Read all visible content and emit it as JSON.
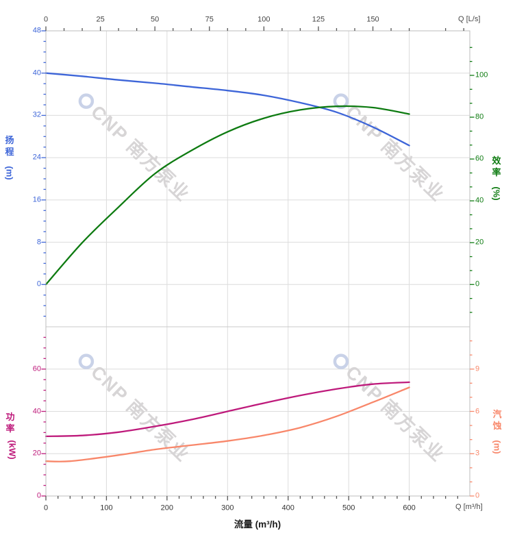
{
  "watermark": {
    "text": "CNP 南方泵业"
  },
  "colors": {
    "head": "#3d65d8",
    "efficiency": "#0e7b11",
    "power": "#be1a7b",
    "npsh": "#f8876a",
    "gridline": "#dcdcdc",
    "plot_border": "#bdbdbd",
    "axis_text": "#444444",
    "watermark_text": "#d7d5d6",
    "watermark_logo": "#c9d2e8"
  },
  "chart_data": [
    {
      "type": "line",
      "id": "head-efficiency-chart",
      "x_axis_top": {
        "unit_label": "Q [L/s]",
        "ticks": [
          0,
          25,
          50,
          75,
          100,
          125,
          150
        ],
        "minor_step": 8.333,
        "range_Ls": [
          0,
          194.4
        ]
      },
      "x_range_m3h": [
        0,
        700
      ],
      "left_axis": {
        "label": "扬程",
        "unit": "(m)",
        "color": "#3d65d8",
        "ticks": [
          0,
          8,
          16,
          24,
          32,
          40,
          48
        ],
        "minor_step": 2,
        "range": [
          -8,
          48
        ]
      },
      "right_axis": {
        "label": "效率",
        "unit": "(%)",
        "color": "#0e7b11",
        "ticks": [
          0,
          20,
          40,
          60,
          80,
          100
        ],
        "minor_step": 6.667,
        "range": [
          -20,
          121
        ]
      },
      "series": [
        {
          "name": "扬程 (Head)",
          "scale": "head",
          "color": "#3d65d8",
          "x_m3h": [
            0,
            60,
            120,
            180,
            240,
            300,
            360,
            420,
            480,
            540,
            600
          ],
          "y": [
            40,
            39.4,
            38.7,
            38.1,
            37.4,
            36.7,
            35.8,
            34.4,
            32.6,
            29.8,
            26.3
          ]
        },
        {
          "name": "效率 (Efficiency)",
          "scale": "eff",
          "color": "#0e7b11",
          "x_m3h": [
            0,
            60,
            120,
            180,
            240,
            300,
            360,
            420,
            480,
            540,
            600
          ],
          "y": [
            0,
            20,
            37,
            53,
            64,
            73,
            79.5,
            83.5,
            85.2,
            84.6,
            81.5
          ]
        }
      ]
    },
    {
      "type": "line",
      "id": "power-npsh-chart",
      "x_axis": {
        "title": "流量 (m³/h)",
        "unit_label": "Q [m³/h]",
        "ticks": [
          0,
          100,
          200,
          300,
          400,
          500,
          600
        ],
        "minor_step": 20,
        "range": [
          0,
          700
        ]
      },
      "left_axis": {
        "label": "功率",
        "unit": "(kW)",
        "color": "#be1a7b",
        "ticks": [
          0,
          20,
          40,
          60
        ],
        "minor_step": 5,
        "range": [
          0,
          80
        ]
      },
      "right_axis": {
        "label": "汽蚀",
        "unit": "(m)",
        "color": "#f8876a",
        "ticks": [
          0,
          3,
          6,
          9
        ],
        "minor_step": 1,
        "range": [
          0,
          12
        ]
      },
      "series": [
        {
          "name": "功率 (Power)",
          "scale": "power",
          "color": "#be1a7b",
          "x_m3h": [
            0,
            60,
            120,
            180,
            240,
            300,
            360,
            420,
            480,
            540,
            600
          ],
          "y": [
            28.2,
            28.6,
            30.2,
            32.9,
            36.1,
            40,
            43.9,
            47.5,
            50.6,
            52.9,
            53.8
          ]
        },
        {
          "name": "汽蚀 (NPSH)",
          "scale": "npsh",
          "color": "#f8876a",
          "x_m3h": [
            0,
            40,
            120,
            180,
            240,
            300,
            360,
            420,
            480,
            540,
            600
          ],
          "y": [
            2.47,
            2.47,
            2.9,
            3.3,
            3.6,
            3.9,
            4.3,
            4.85,
            5.65,
            6.65,
            7.7
          ]
        }
      ]
    }
  ]
}
